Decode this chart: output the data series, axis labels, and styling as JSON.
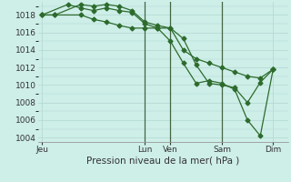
{
  "bg_color": "#ceeee8",
  "grid_color": "#b0d8d0",
  "line_color": "#2d6b2d",
  "vline_color": "#446644",
  "xlabel": "Pression niveau de la mer( hPa )",
  "ylim": [
    1003.5,
    1019.5
  ],
  "yticks": [
    1004,
    1006,
    1008,
    1010,
    1012,
    1014,
    1016,
    1018
  ],
  "xtick_labels": [
    "Jeu",
    "Lun",
    "Ven",
    "Sam",
    "Dim"
  ],
  "xtick_positions": [
    0,
    48,
    60,
    84,
    108
  ],
  "xlim": [
    -2,
    115
  ],
  "line1_x": [
    0,
    6,
    18,
    24,
    30,
    36,
    42,
    48,
    54,
    60,
    66,
    72,
    78,
    84,
    90,
    96,
    102,
    108
  ],
  "line1_y": [
    1018.0,
    1018.0,
    1019.2,
    1019.0,
    1019.2,
    1019.0,
    1018.5,
    1017.2,
    1016.8,
    1016.5,
    1015.3,
    1012.3,
    1010.2,
    1010.0,
    1009.7,
    1008.0,
    1010.3,
    1011.8
  ],
  "line2_x": [
    0,
    12,
    18,
    24,
    30,
    36,
    42,
    48,
    54,
    60,
    66,
    72,
    78,
    84,
    90,
    96,
    102,
    108
  ],
  "line2_y": [
    1018.0,
    1019.2,
    1018.8,
    1018.5,
    1018.8,
    1018.5,
    1018.3,
    1017.0,
    1016.5,
    1015.0,
    1012.5,
    1010.2,
    1010.5,
    1010.2,
    1009.5,
    1006.0,
    1004.2,
    1011.8
  ],
  "line3_x": [
    0,
    6,
    18,
    24,
    30,
    36,
    42,
    48,
    54,
    60,
    66,
    72,
    78,
    84,
    90,
    96,
    102,
    108
  ],
  "line3_y": [
    1018.0,
    1018.0,
    1018.0,
    1017.5,
    1017.2,
    1016.8,
    1016.5,
    1016.5,
    1016.5,
    1016.5,
    1014.0,
    1013.0,
    1012.5,
    1012.0,
    1011.5,
    1011.0,
    1010.8,
    1011.8
  ],
  "vlines_x": [
    48,
    60,
    84
  ],
  "fontsize": 6.5,
  "xlabel_fontsize": 7.5
}
